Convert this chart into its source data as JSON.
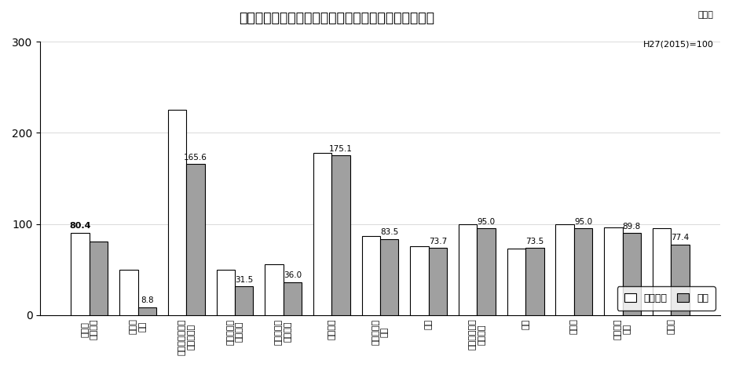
{
  "title": "業種別の生産指数（原指数）の当月と前年同月の比較",
  "subtitle_line1": "原指数",
  "subtitle_line2": "H27(2015)=100",
  "categories": [
    "鉱工業\n（総合）",
    "鉄鋼・\n金属",
    "汎用・生産用・\n業務用機械",
    "電子部品・\nデバイス",
    "電気・情報\n通信機械",
    "輸送機械",
    "窯業・土石\n製品",
    "化学",
    "パルプ・紙・\n紙加工品",
    "繊維",
    "食料品",
    "木材・木\n製品",
    "その他"
  ],
  "prev_year": [
    90.5,
    50.0,
    225.0,
    50.0,
    56.0,
    178.0,
    87.0,
    75.5,
    100.0,
    73.0,
    100.0,
    96.0,
    95.0
  ],
  "current": [
    80.4,
    8.8,
    165.6,
    31.5,
    36.0,
    175.1,
    83.5,
    73.7,
    95.0,
    73.5,
    95.0,
    89.8,
    77.4
  ],
  "labels_on_curr": [
    false,
    true,
    true,
    true,
    true,
    true,
    true,
    true,
    true,
    true,
    true,
    true,
    true
  ],
  "label_bold": [
    true,
    false,
    false,
    false,
    false,
    false,
    false,
    false,
    false,
    false,
    false,
    false,
    false
  ],
  "label_above_prev_for_first": true,
  "current_labels": [
    "80.4",
    "8.8",
    "165.6",
    "31.5",
    "36.0",
    "175.1",
    "83.5",
    "73.7",
    "95.0",
    "73.5",
    "95.0",
    "89.8",
    "77.4"
  ],
  "color_prev": "#ffffff",
  "color_curr": "#a0a0a0",
  "edgecolor": "#000000",
  "ylim_min": 0,
  "ylim_max": 300,
  "yticks": [
    0,
    100,
    200,
    300
  ],
  "legend_prev": "前年同月",
  "legend_curr": "当月",
  "bg_color": "#ffffff",
  "grid_color": "#cccccc"
}
